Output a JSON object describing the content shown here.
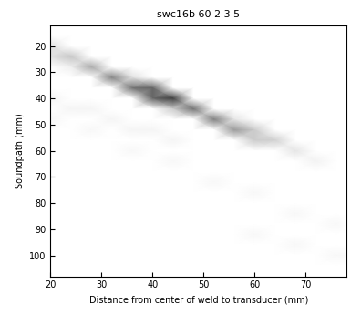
{
  "chart_data": {
    "type": "heatmap",
    "title": "swc16b 60 2 3 5",
    "x_label": "Distance from center of weld to transducer (mm)",
    "y_label": "Soundpath (mm)",
    "x": [
      20,
      24,
      28,
      32,
      36,
      40,
      44,
      48,
      52,
      56,
      60,
      64,
      68,
      72,
      76,
      78
    ],
    "y": [
      12,
      16,
      20,
      24,
      28,
      32,
      36,
      40,
      44,
      48,
      52,
      56,
      60,
      64,
      68,
      72,
      76,
      80,
      84,
      88,
      92,
      96,
      100,
      104,
      108
    ],
    "cells": [
      [
        0,
        0,
        0,
        0,
        0,
        0,
        0,
        0,
        0,
        0,
        0,
        0,
        0,
        0,
        0,
        0
      ],
      [
        0,
        0,
        0,
        0,
        0,
        0,
        0,
        0,
        0,
        0,
        0,
        0,
        0,
        0,
        0,
        0
      ],
      [
        0.12,
        0,
        0,
        0,
        0,
        0,
        0,
        0,
        0,
        0,
        0,
        0,
        0,
        0,
        0,
        0
      ],
      [
        0.12,
        0.22,
        0,
        0,
        0,
        0,
        0,
        0,
        0,
        0,
        0,
        0,
        0,
        0,
        0,
        0
      ],
      [
        0,
        0.06,
        0.33,
        0,
        0,
        0,
        0,
        0,
        0,
        0,
        0,
        0,
        0,
        0,
        0,
        0
      ],
      [
        0,
        0,
        0,
        0.48,
        0.12,
        0,
        0,
        0,
        0,
        0,
        0,
        0,
        0,
        0,
        0,
        0
      ],
      [
        0,
        0,
        0,
        0,
        0.55,
        0.6,
        0,
        0,
        0,
        0,
        0,
        0,
        0,
        0,
        0,
        0
      ],
      [
        0.04,
        0,
        0,
        0,
        0,
        0.6,
        0.75,
        0,
        0,
        0,
        0,
        0,
        0,
        0,
        0,
        0
      ],
      [
        0,
        0.04,
        0.04,
        0,
        0,
        0,
        0.2,
        0.55,
        0,
        0,
        0,
        0,
        0,
        0,
        0,
        0
      ],
      [
        0.03,
        0,
        0,
        0.04,
        0,
        0,
        0,
        0,
        0.5,
        0.1,
        0,
        0,
        0,
        0,
        0,
        0
      ],
      [
        0,
        0,
        0.03,
        0,
        0.04,
        0.04,
        0,
        0,
        0,
        0.4,
        0.2,
        0,
        0,
        0,
        0,
        0
      ],
      [
        0,
        0,
        0,
        0,
        0,
        0,
        0.04,
        0,
        0,
        0,
        0.2,
        0.18,
        0,
        0,
        0,
        0
      ],
      [
        0,
        0,
        0,
        0,
        0.03,
        0,
        0,
        0,
        0,
        0,
        0,
        0,
        0.1,
        0,
        0,
        0
      ],
      [
        0,
        0,
        0,
        0,
        0,
        0,
        0.03,
        0,
        0,
        0,
        0,
        0,
        0,
        0.05,
        0,
        0
      ],
      [
        0,
        0,
        0,
        0,
        0,
        0,
        0,
        0,
        0,
        0,
        0,
        0,
        0,
        0,
        0,
        0
      ],
      [
        0,
        0,
        0,
        0,
        0,
        0,
        0,
        0,
        0.03,
        0,
        0,
        0,
        0,
        0,
        0,
        0
      ],
      [
        0,
        0,
        0,
        0,
        0,
        0,
        0,
        0,
        0,
        0,
        0.03,
        0,
        0,
        0,
        0,
        0
      ],
      [
        0,
        0,
        0,
        0,
        0,
        0,
        0,
        0,
        0,
        0,
        0,
        0,
        0,
        0,
        0,
        0
      ],
      [
        0,
        0,
        0,
        0,
        0,
        0,
        0,
        0,
        0,
        0,
        0,
        0,
        0.03,
        0,
        0,
        0
      ],
      [
        0,
        0,
        0,
        0,
        0,
        0,
        0,
        0,
        0,
        0,
        0,
        0,
        0,
        0,
        0.03,
        0
      ],
      [
        0,
        0,
        0,
        0,
        0,
        0,
        0,
        0,
        0,
        0,
        0.03,
        0,
        0,
        0,
        0,
        0
      ],
      [
        0,
        0,
        0,
        0,
        0,
        0,
        0,
        0,
        0,
        0,
        0,
        0,
        0.03,
        0,
        0,
        0
      ],
      [
        0,
        0,
        0,
        0,
        0,
        0,
        0,
        0,
        0,
        0,
        0,
        0,
        0,
        0,
        0.03,
        0.03
      ],
      [
        0,
        0,
        0,
        0,
        0,
        0,
        0,
        0,
        0,
        0,
        0,
        0,
        0,
        0,
        0,
        0
      ],
      [
        0,
        0,
        0,
        0,
        0,
        0,
        0,
        0,
        0,
        0,
        0,
        0,
        0,
        0,
        0,
        0
      ]
    ],
    "value_range": [
      0,
      1
    ],
    "color": "gray_r",
    "xlim": [
      20,
      78
    ],
    "xticks": [
      20,
      30,
      40,
      50,
      60,
      70
    ],
    "ylim": [
      108,
      12
    ],
    "yticks": [
      20,
      30,
      40,
      50,
      60,
      70,
      80,
      90,
      100
    ]
  }
}
